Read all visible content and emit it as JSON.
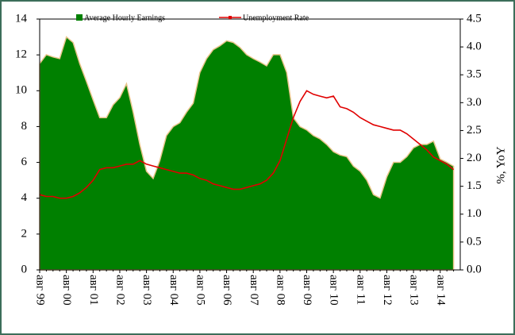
{
  "chart_data": {
    "type": "area_line",
    "categories": [
      "авг 99",
      null,
      null,
      null,
      "авг 00",
      null,
      null,
      null,
      "авг 01",
      null,
      null,
      null,
      "авг 02",
      null,
      null,
      null,
      "авг 03",
      null,
      null,
      null,
      "авг 04",
      null,
      null,
      null,
      "авг 05",
      null,
      null,
      null,
      "авг 06",
      null,
      null,
      null,
      "авг 07",
      null,
      null,
      null,
      "авг 08",
      null,
      null,
      null,
      "авг 09",
      null,
      null,
      null,
      "авг 10",
      null,
      null,
      null,
      "авг 11",
      null,
      null,
      null,
      "авг 12",
      null,
      null,
      null,
      "авг 13",
      null,
      null,
      null,
      "авг 14",
      null,
      null
    ],
    "series": [
      {
        "name": "Average Hourly Earnings",
        "color": "#008000",
        "axis": "y2",
        "values": [
          3.7,
          3.86,
          3.82,
          3.79,
          4.18,
          4.08,
          3.7,
          3.38,
          3.05,
          2.73,
          2.73,
          2.96,
          3.09,
          3.34,
          2.83,
          2.25,
          1.77,
          1.64,
          1.96,
          2.41,
          2.57,
          2.64,
          2.83,
          2.99,
          3.54,
          3.79,
          3.95,
          4.02,
          4.11,
          4.08,
          3.99,
          3.86,
          3.79,
          3.73,
          3.66,
          3.86,
          3.86,
          3.54,
          2.73,
          2.57,
          2.51,
          2.41,
          2.35,
          2.25,
          2.12,
          2.06,
          2.03,
          1.86,
          1.77,
          1.61,
          1.35,
          1.29,
          1.67,
          1.93,
          1.93,
          2.03,
          2.19,
          2.25,
          2.25,
          2.31,
          1.99,
          1.93,
          1.86
        ]
      },
      {
        "name": "Unemployment Rate",
        "color": "#e00000",
        "values": [
          4.2,
          4.1,
          4.1,
          4.0,
          4.0,
          4.1,
          4.3,
          4.6,
          5.0,
          5.6,
          5.7,
          5.7,
          5.8,
          5.9,
          5.9,
          6.1,
          5.9,
          5.8,
          5.7,
          5.6,
          5.5,
          5.4,
          5.4,
          5.3,
          5.1,
          5.0,
          4.8,
          4.7,
          4.6,
          4.5,
          4.5,
          4.6,
          4.7,
          4.8,
          5.0,
          5.4,
          6.1,
          7.3,
          8.5,
          9.4,
          10.0,
          9.8,
          9.7,
          9.6,
          9.7,
          9.1,
          9.0,
          8.8,
          8.5,
          8.3,
          8.1,
          8.0,
          7.9,
          7.8,
          7.8,
          7.6,
          7.3,
          7.0,
          6.7,
          6.3,
          6.1,
          5.9,
          5.6
        ]
      }
    ],
    "ylim": [
      0,
      14
    ],
    "yticks": [
      0,
      2,
      4,
      6,
      8,
      10,
      12,
      14
    ],
    "y2lim": [
      0,
      4.5
    ],
    "y2ticks": [
      {
        "value": 0,
        "label": "0.0"
      },
      0.5,
      {
        "value": 1,
        "label": "1.0"
      },
      1.5,
      {
        "value": 2,
        "label": "2.0"
      },
      2.5,
      {
        "value": 3,
        "label": "3.0"
      },
      3.5,
      {
        "value": 4,
        "label": "4.0"
      },
      4.5
    ],
    "y2label": "%, YoY"
  }
}
